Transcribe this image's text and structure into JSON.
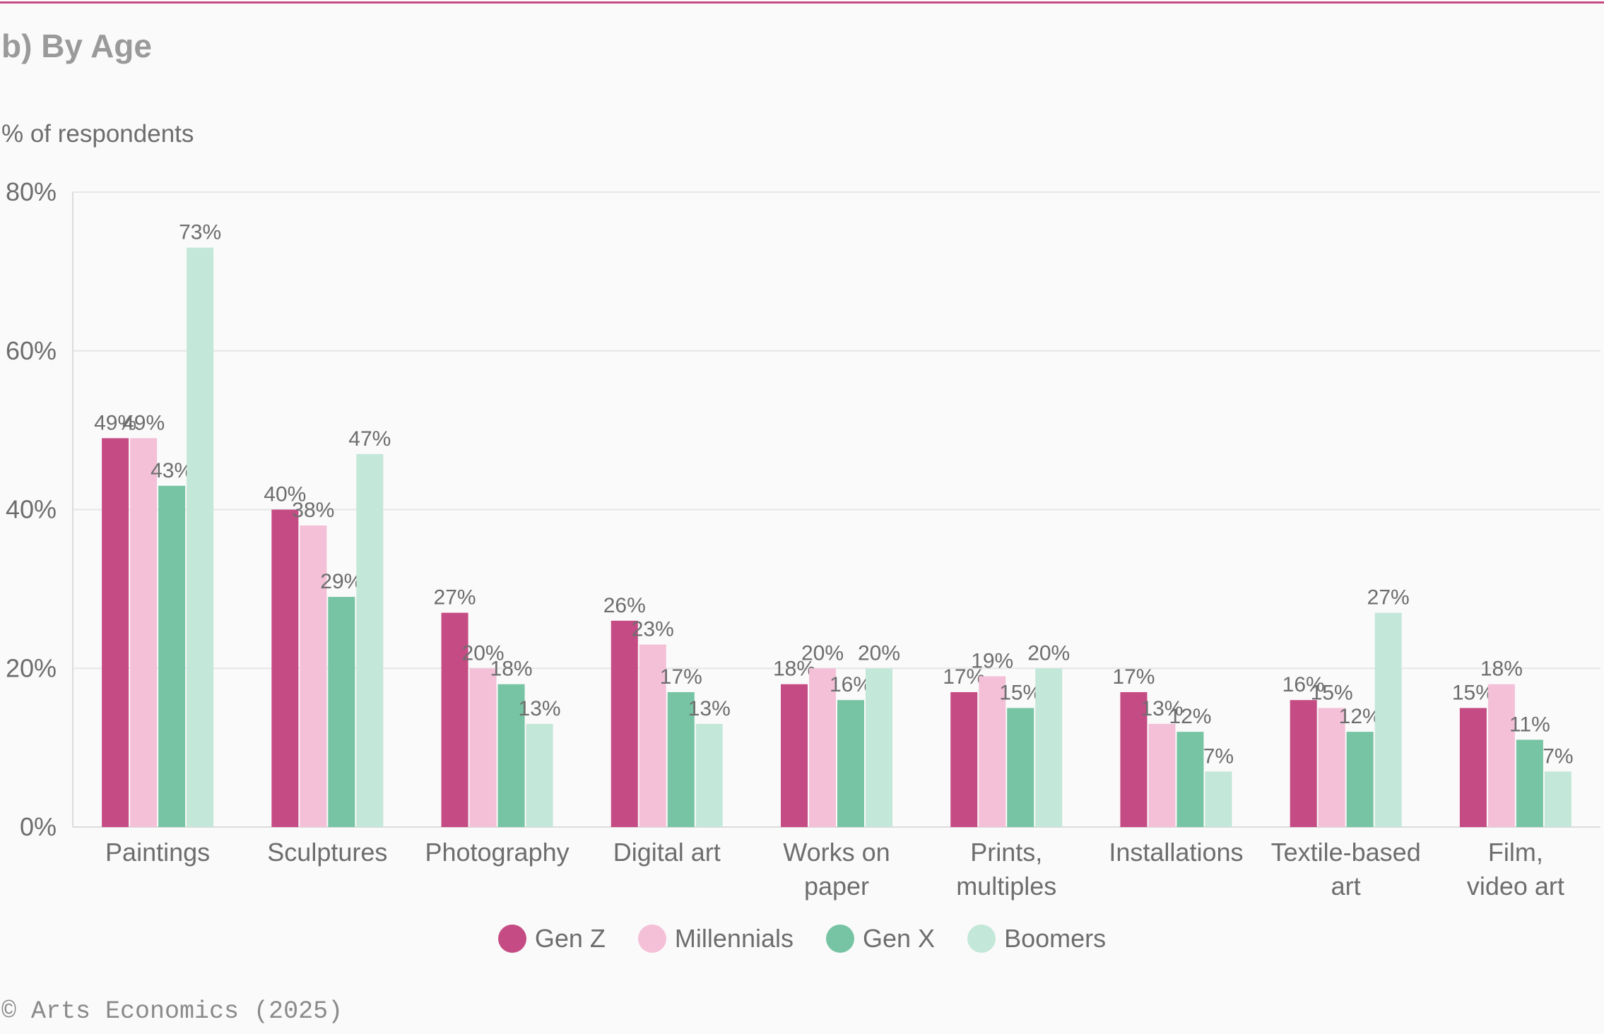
{
  "title": "b) By Age",
  "source": "© Arts Economics (2025)",
  "chart_data": {
    "type": "bar",
    "ylabel": "% of respondents",
    "ylim": [
      0,
      80
    ],
    "yticks": [
      "0%",
      "20%",
      "40%",
      "60%",
      "80%"
    ],
    "grid": true,
    "legend_position": "bottom",
    "categories": [
      [
        "Paintings"
      ],
      [
        "Sculptures"
      ],
      [
        "Photography"
      ],
      [
        "Digital art"
      ],
      [
        "Works on",
        "paper"
      ],
      [
        "Prints,",
        "multiples"
      ],
      [
        "Installations"
      ],
      [
        "Textile-based",
        "art"
      ],
      [
        "Film,",
        "video art"
      ]
    ],
    "series": [
      {
        "name": "Gen Z",
        "color": "#c54b84",
        "values": [
          49,
          40,
          27,
          26,
          18,
          17,
          17,
          16,
          15
        ],
        "labels": [
          "49%",
          "40%",
          "27%",
          "26%",
          "18%",
          "17%",
          "17%",
          "16%",
          "15%"
        ]
      },
      {
        "name": "Millennials",
        "color": "#f4c0d7",
        "values": [
          49,
          38,
          20,
          23,
          20,
          19,
          13,
          15,
          18
        ],
        "labels": [
          "49%",
          "38%",
          "20%",
          "23%",
          "20%",
          "19%",
          "13%",
          "15%",
          "18%"
        ]
      },
      {
        "name": "Gen X",
        "color": "#76c4a3",
        "values": [
          43,
          29,
          18,
          17,
          16,
          15,
          12,
          12,
          11
        ],
        "labels": [
          "43%",
          "29%",
          "18%",
          "17%",
          "16%",
          "15%",
          "12%",
          "12%",
          "11%"
        ]
      },
      {
        "name": "Boomers",
        "color": "#c3e7d8",
        "values": [
          73,
          47,
          13,
          13,
          20,
          20,
          7,
          27,
          7
        ],
        "labels": [
          "73%",
          "47%",
          "13%",
          "13%",
          "20%",
          "20%",
          "7%",
          "27%",
          "7%"
        ]
      }
    ]
  }
}
